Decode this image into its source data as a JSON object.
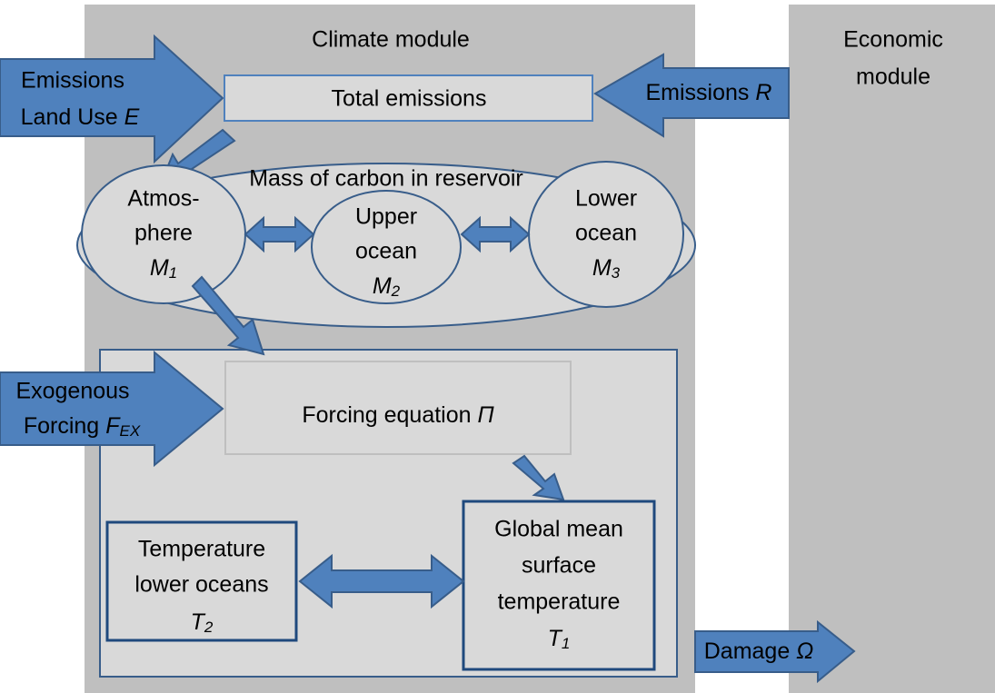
{
  "climate_module": {
    "title": "Climate module"
  },
  "economic_module": {
    "title": [
      "Economic",
      "module"
    ]
  },
  "inputs": {
    "land_use": {
      "lines": [
        "Emissions",
        "Land Use"
      ],
      "symbol": "E"
    },
    "emissions_r": {
      "label": "Emissions",
      "symbol": "R"
    },
    "exogenous": {
      "lines": [
        "Exogenous",
        "Forcing"
      ],
      "symbol": "F",
      "sub": "EX"
    }
  },
  "total_emissions": "Total emissions",
  "reservoir": {
    "title": "Mass of carbon in reservoir",
    "nodes": [
      {
        "lines": [
          "Atmos-",
          "phere"
        ],
        "symbol": "M",
        "sub": "1"
      },
      {
        "lines": [
          "Upper",
          "ocean"
        ],
        "symbol": "M",
        "sub": "2"
      },
      {
        "lines": [
          "Lower",
          "ocean"
        ],
        "symbol": "M",
        "sub": "3"
      }
    ]
  },
  "forcing": {
    "label": "Forcing equation",
    "symbol": "Π"
  },
  "temperature": {
    "nodes": [
      {
        "lines": [
          "Temperature",
          "lower oceans"
        ],
        "symbol": "T",
        "sub": "2"
      },
      {
        "lines": [
          "Global mean",
          "surface",
          "temperature"
        ],
        "symbol": "T",
        "sub": "1"
      }
    ]
  },
  "damage": {
    "label": "Damage",
    "symbol": "Ω"
  }
}
